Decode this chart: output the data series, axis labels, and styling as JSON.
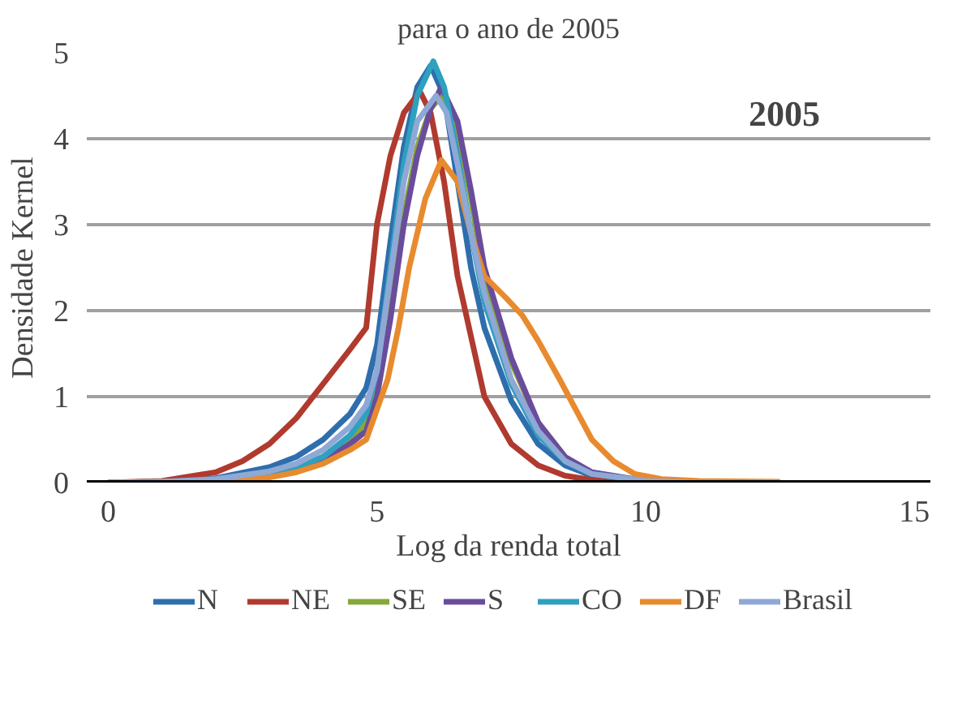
{
  "chart_data": {
    "type": "line",
    "title": "para o ano de 2005",
    "xlabel": "Log da renda total",
    "ylabel": "Densidade Kernel",
    "annotations": [
      "2005"
    ],
    "xlim": [
      -0.4,
      15.3
    ],
    "ylim": [
      0,
      5
    ],
    "xticks": [
      0,
      5,
      10,
      15
    ],
    "yticks": [
      0,
      1,
      2,
      3,
      4,
      5
    ],
    "grid": "y",
    "legend": "bottom",
    "marker": "none",
    "line_style": "solid",
    "series": [
      {
        "name": "N",
        "color": "#2e6ead",
        "x": [
          0,
          1,
          2,
          3,
          3.5,
          4,
          4.5,
          4.8,
          5,
          5.25,
          5.5,
          5.75,
          6,
          6.25,
          6.5,
          6.75,
          7,
          7.5,
          8,
          8.5,
          9,
          10,
          11,
          12.5
        ],
        "values": [
          0,
          0.01,
          0.05,
          0.18,
          0.3,
          0.5,
          0.8,
          1.1,
          1.6,
          2.8,
          3.9,
          4.6,
          4.85,
          4.5,
          3.5,
          2.5,
          1.8,
          0.95,
          0.45,
          0.2,
          0.08,
          0.01,
          0,
          0
        ]
      },
      {
        "name": "NE",
        "color": "#b03a2e",
        "x": [
          0,
          1,
          2,
          2.5,
          3,
          3.5,
          4,
          4.5,
          4.8,
          5,
          5.25,
          5.5,
          5.8,
          6,
          6.25,
          6.5,
          7,
          7.5,
          8,
          8.5,
          9,
          10,
          11,
          12.5
        ],
        "values": [
          0,
          0.02,
          0.12,
          0.25,
          0.45,
          0.75,
          1.15,
          1.55,
          1.8,
          3.0,
          3.8,
          4.3,
          4.55,
          4.3,
          3.5,
          2.4,
          1.0,
          0.45,
          0.2,
          0.08,
          0.03,
          0,
          0,
          0
        ]
      },
      {
        "name": "SE",
        "color": "#86a83a",
        "x": [
          2,
          3,
          3.5,
          4,
          4.5,
          4.8,
          5,
          5.25,
          5.5,
          5.75,
          6,
          6.2,
          6.5,
          6.75,
          7,
          7.5,
          8,
          8.5
        ],
        "values": [
          0.03,
          0.1,
          0.18,
          0.3,
          0.5,
          0.7,
          1.1,
          2.0,
          3.1,
          3.9,
          4.35,
          4.5,
          4.1,
          3.3,
          2.4,
          1.4,
          0.7,
          0.3
        ]
      },
      {
        "name": "S",
        "color": "#6a4c9c",
        "x": [
          0,
          1,
          2,
          3,
          3.5,
          4,
          4.5,
          4.8,
          5,
          5.25,
          5.5,
          5.75,
          6,
          6.2,
          6.5,
          6.75,
          7,
          7.5,
          8,
          8.5,
          9,
          10,
          11,
          12.5
        ],
        "values": [
          0,
          0.01,
          0.02,
          0.08,
          0.15,
          0.25,
          0.45,
          0.6,
          1.0,
          1.9,
          3.0,
          3.8,
          4.35,
          4.6,
          4.2,
          3.4,
          2.5,
          1.45,
          0.7,
          0.3,
          0.12,
          0.02,
          0,
          0
        ]
      },
      {
        "name": "CO",
        "color": "#2ea0c0",
        "x": [
          0,
          1,
          2,
          3,
          3.5,
          4,
          4.5,
          4.8,
          5,
          5.25,
          5.5,
          5.75,
          6.05,
          6.25,
          6.5,
          6.75,
          7,
          7.5,
          8,
          8.5,
          9,
          10
        ],
        "values": [
          0,
          0.01,
          0.03,
          0.1,
          0.18,
          0.3,
          0.55,
          0.8,
          1.3,
          2.5,
          3.7,
          4.5,
          4.9,
          4.6,
          3.8,
          2.9,
          2.1,
          1.15,
          0.55,
          0.25,
          0.1,
          0.02
        ]
      },
      {
        "name": "DF",
        "color": "#e88a2e",
        "x": [
          0,
          1,
          2,
          3,
          3.5,
          4,
          4.5,
          4.8,
          5,
          5.2,
          5.4,
          5.6,
          5.9,
          6.2,
          6.5,
          6.75,
          7,
          7.4,
          7.7,
          8,
          8.4,
          8.7,
          9,
          9.4,
          9.8,
          10.3,
          11,
          12.5
        ],
        "values": [
          0,
          0.01,
          0.02,
          0.06,
          0.12,
          0.22,
          0.38,
          0.5,
          0.85,
          1.2,
          1.8,
          2.5,
          3.3,
          3.75,
          3.5,
          2.9,
          2.4,
          2.15,
          1.95,
          1.65,
          1.2,
          0.85,
          0.5,
          0.25,
          0.1,
          0.04,
          0.02,
          0.01
        ]
      },
      {
        "name": "Brasil",
        "color": "#8fa8d6",
        "x": [
          0,
          1,
          2,
          3,
          3.5,
          4,
          4.5,
          4.8,
          5,
          5.25,
          5.5,
          5.75,
          6.1,
          6.3,
          6.5,
          6.75,
          7,
          7.5,
          8,
          8.5,
          9,
          10,
          11,
          12.5
        ],
        "values": [
          0,
          0.01,
          0.04,
          0.13,
          0.22,
          0.38,
          0.65,
          0.9,
          1.3,
          2.4,
          3.5,
          4.2,
          4.5,
          4.3,
          3.7,
          2.9,
          2.2,
          1.2,
          0.6,
          0.25,
          0.1,
          0.02,
          0,
          0
        ]
      }
    ]
  }
}
